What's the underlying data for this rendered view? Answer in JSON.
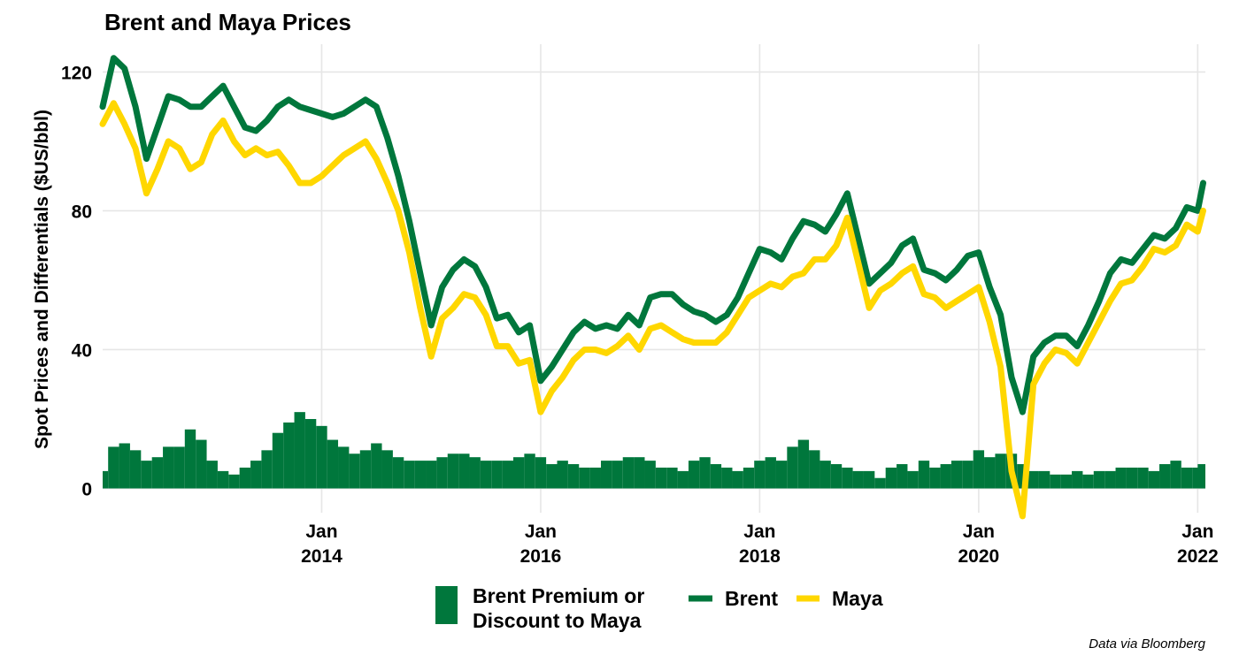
{
  "colors": {
    "brent": "#00773C",
    "maya": "#FFD700",
    "premium": "#00773C",
    "grid": "#e6e6e6"
  },
  "chart_data": {
    "type": "line",
    "title": "Brent and Maya Prices",
    "xlabel": "",
    "ylabel": "Spot Prices and Differentials ($US/bbl)",
    "caption": "Data via Bloomberg",
    "xlim": [
      2012.0,
      2022.07
    ],
    "ylim": [
      -7,
      128
    ],
    "y_ticks": [
      0,
      40,
      80,
      120
    ],
    "y_tick_labels": [
      "0",
      "40",
      "80",
      "120"
    ],
    "x_ticks": [
      {
        "x": 2014.0,
        "month": "Jan",
        "year": "2014"
      },
      {
        "x": 2016.0,
        "month": "Jan",
        "year": "2016"
      },
      {
        "x": 2018.0,
        "month": "Jan",
        "year": "2018"
      },
      {
        "x": 2020.0,
        "month": "Jan",
        "year": "2020"
      },
      {
        "x": 2022.0,
        "month": "Jan",
        "year": "2022"
      }
    ],
    "grid": true,
    "legend_position": "bottom",
    "legend": [
      {
        "name": "Brent Premium or Discount to Maya",
        "lines": [
          "Brent Premium or",
          "Discount to Maya"
        ],
        "kind": "bar"
      },
      {
        "name": "Brent",
        "lines": [
          "Brent"
        ],
        "kind": "line"
      },
      {
        "name": "Maya",
        "lines": [
          "Maya"
        ],
        "kind": "line"
      }
    ],
    "x": [
      2012.0,
      2012.1,
      2012.2,
      2012.3,
      2012.4,
      2012.5,
      2012.6,
      2012.7,
      2012.8,
      2012.9,
      2013.0,
      2013.1,
      2013.2,
      2013.3,
      2013.4,
      2013.5,
      2013.6,
      2013.7,
      2013.8,
      2013.9,
      2014.0,
      2014.1,
      2014.2,
      2014.3,
      2014.4,
      2014.5,
      2014.6,
      2014.7,
      2014.8,
      2014.9,
      2015.0,
      2015.1,
      2015.2,
      2015.3,
      2015.4,
      2015.5,
      2015.6,
      2015.7,
      2015.8,
      2015.9,
      2016.0,
      2016.1,
      2016.2,
      2016.3,
      2016.4,
      2016.5,
      2016.6,
      2016.7,
      2016.8,
      2016.9,
      2017.0,
      2017.1,
      2017.2,
      2017.3,
      2017.4,
      2017.5,
      2017.6,
      2017.7,
      2017.8,
      2017.9,
      2018.0,
      2018.1,
      2018.2,
      2018.3,
      2018.4,
      2018.5,
      2018.6,
      2018.7,
      2018.8,
      2018.9,
      2019.0,
      2019.1,
      2019.2,
      2019.3,
      2019.4,
      2019.5,
      2019.6,
      2019.7,
      2019.8,
      2019.9,
      2020.0,
      2020.1,
      2020.2,
      2020.3,
      2020.4,
      2020.5,
      2020.6,
      2020.7,
      2020.8,
      2020.9,
      2021.0,
      2021.1,
      2021.2,
      2021.3,
      2021.4,
      2021.5,
      2021.6,
      2021.7,
      2021.8,
      2021.9,
      2022.0,
      2022.05
    ],
    "series": [
      {
        "name": "Brent",
        "values": [
          110,
          124,
          121,
          110,
          95,
          104,
          113,
          112,
          110,
          110,
          113,
          116,
          110,
          104,
          103,
          106,
          110,
          112,
          110,
          109,
          108,
          107,
          108,
          110,
          112,
          110,
          101,
          90,
          77,
          62,
          47,
          58,
          63,
          66,
          64,
          58,
          49,
          50,
          45,
          47,
          31,
          35,
          40,
          45,
          48,
          46,
          47,
          46,
          50,
          47,
          55,
          56,
          56,
          53,
          51,
          50,
          48,
          50,
          55,
          62,
          69,
          68,
          66,
          72,
          77,
          76,
          74,
          79,
          85,
          72,
          59,
          62,
          65,
          70,
          72,
          63,
          62,
          60,
          63,
          67,
          68,
          58,
          50,
          32,
          22,
          38,
          42,
          44,
          44,
          41,
          47,
          54,
          62,
          66,
          65,
          69,
          73,
          72,
          75,
          81,
          80,
          88
        ]
      },
      {
        "name": "Maya",
        "values": [
          105,
          111,
          105,
          98,
          85,
          92,
          100,
          98,
          92,
          94,
          102,
          106,
          100,
          96,
          98,
          96,
          97,
          93,
          88,
          88,
          90,
          93,
          96,
          98,
          100,
          95,
          88,
          80,
          68,
          52,
          38,
          49,
          52,
          56,
          55,
          50,
          41,
          41,
          36,
          37,
          22,
          28,
          32,
          37,
          40,
          40,
          39,
          41,
          44,
          40,
          46,
          47,
          45,
          43,
          42,
          42,
          42,
          45,
          50,
          55,
          57,
          59,
          58,
          61,
          62,
          66,
          66,
          70,
          78,
          65,
          52,
          57,
          59,
          62,
          64,
          56,
          55,
          52,
          54,
          56,
          58,
          48,
          35,
          5,
          -8,
          30,
          36,
          40,
          39,
          36,
          42,
          48,
          54,
          59,
          60,
          64,
          69,
          68,
          70,
          76,
          74,
          80
        ]
      },
      {
        "name": "Brent Premium or Discount to Maya",
        "values": [
          5,
          12,
          13,
          11,
          8,
          9,
          12,
          12,
          17,
          14,
          8,
          5,
          4,
          6,
          8,
          11,
          16,
          19,
          22,
          20,
          18,
          14,
          12,
          10,
          11,
          13,
          11,
          9,
          8,
          8,
          8,
          9,
          10,
          10,
          9,
          8,
          8,
          8,
          9,
          10,
          9,
          7,
          8,
          7,
          6,
          6,
          8,
          8,
          9,
          9,
          8,
          6,
          6,
          5,
          8,
          9,
          7,
          6,
          5,
          6,
          8,
          9,
          8,
          12,
          14,
          11,
          8,
          7,
          6,
          5,
          5,
          3,
          6,
          7,
          5,
          8,
          6,
          7,
          8,
          8,
          11,
          9,
          10,
          10,
          7,
          5,
          5,
          4,
          4,
          5,
          4,
          5,
          5,
          6,
          6,
          6,
          5,
          7,
          8,
          6,
          6,
          7
        ]
      }
    ]
  }
}
